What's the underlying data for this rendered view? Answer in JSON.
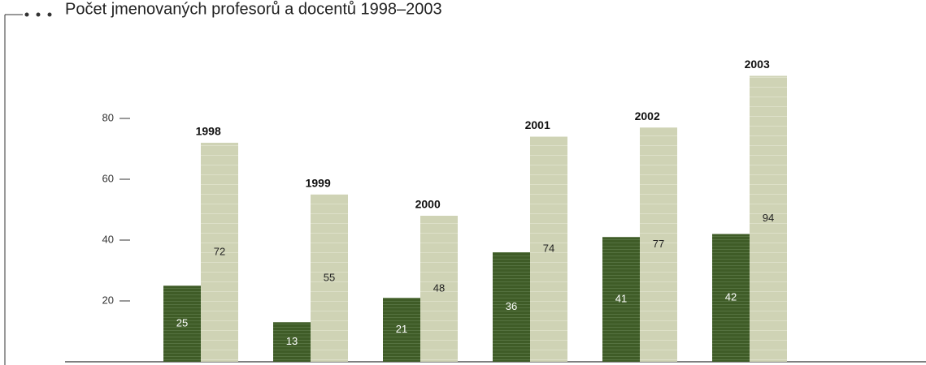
{
  "chart_data": {
    "type": "bar",
    "title": "Počet jmenovaných profesorů a docentů 1998–2003",
    "categories": [
      "1998",
      "1999",
      "2000",
      "2001",
      "2002",
      "2003"
    ],
    "series": [
      {
        "color": "#3f5c27",
        "values": [
          25,
          13,
          21,
          36,
          41,
          42
        ]
      },
      {
        "color": "#cfd3b5",
        "values": [
          72,
          55,
          48,
          74,
          77,
          94
        ]
      }
    ],
    "ylim": [
      0,
      110
    ],
    "yticks": [
      20,
      40,
      60,
      80
    ],
    "grid": false
  }
}
